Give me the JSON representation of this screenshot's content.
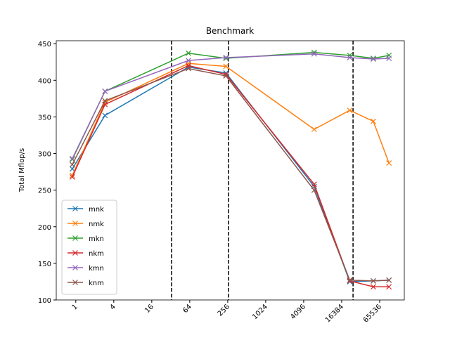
{
  "chart_data": {
    "type": "line",
    "title": "Benchmark",
    "ylabel": "Total Mflop/s",
    "x": [
      0.88,
      2.9,
      61,
      240,
      6000,
      22000,
      52000,
      92000
    ],
    "series": [
      {
        "name": "mnk",
        "color": "#1f77b4",
        "values": [
          279,
          352,
          418,
          410,
          255,
          125,
          126,
          127
        ]
      },
      {
        "name": "nmk",
        "color": "#ff7f0e",
        "values": [
          270,
          370,
          423,
          419,
          333,
          359,
          344,
          287
        ]
      },
      {
        "name": "mkn",
        "color": "#2ca02c",
        "values": [
          292,
          385,
          437,
          430,
          438,
          434,
          430,
          434
        ]
      },
      {
        "name": "nkm",
        "color": "#d62728",
        "values": [
          268,
          367,
          420,
          408,
          258,
          126,
          118,
          118
        ]
      },
      {
        "name": "kmn",
        "color": "#9467bd",
        "values": [
          293,
          385,
          427,
          431,
          436,
          431,
          429,
          430
        ]
      },
      {
        "name": "knm",
        "color": "#8c564b",
        "values": [
          285,
          372,
          416,
          406,
          250,
          127,
          126,
          127
        ]
      }
    ],
    "xscale": "log2",
    "xlim": [
      0.49,
      161000
    ],
    "xticks": [
      1,
      4,
      16,
      64,
      256,
      1024,
      4096,
      16384,
      65536
    ],
    "ylim": [
      100,
      454
    ],
    "yticks": [
      100,
      150,
      200,
      250,
      300,
      350,
      400,
      450
    ],
    "vlines": [
      33,
      263,
      24800
    ],
    "legend": "lower left",
    "marker": "x"
  }
}
